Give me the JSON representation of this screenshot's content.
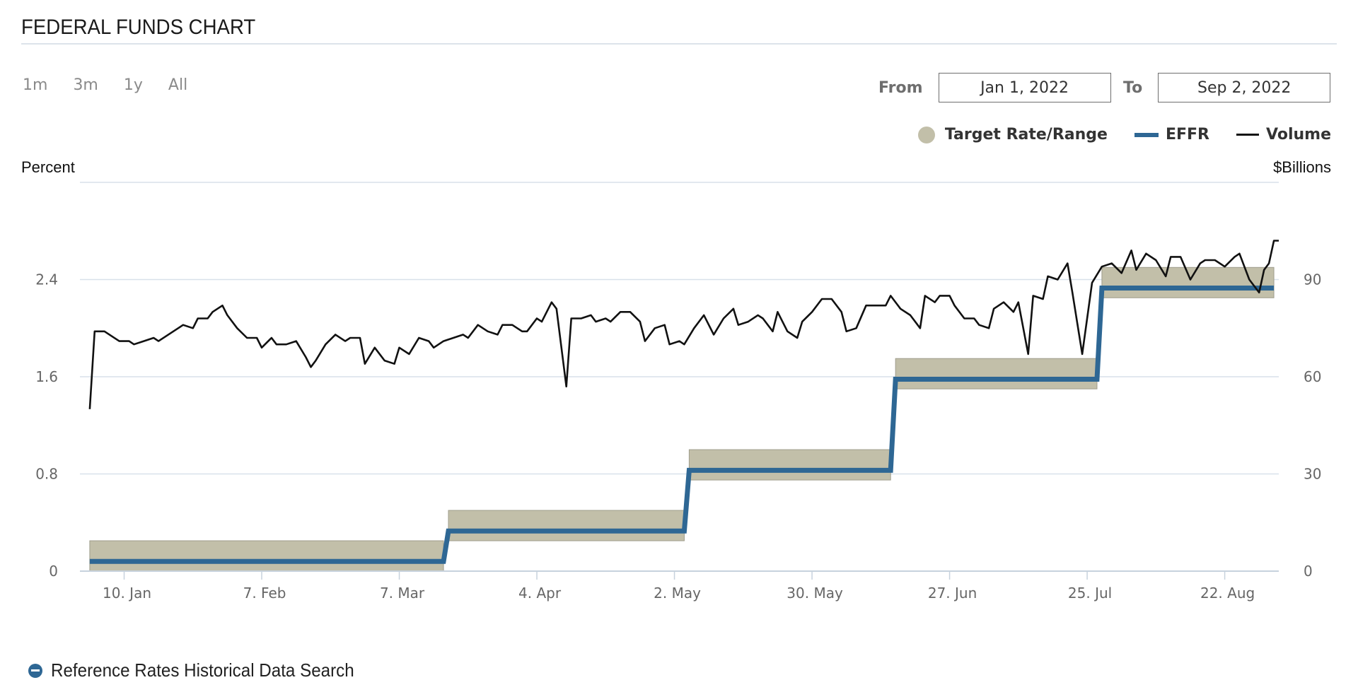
{
  "header": {
    "title": "FEDERAL FUNDS CHART"
  },
  "range_selector": {
    "buttons": [
      "1m",
      "3m",
      "1y",
      "All"
    ]
  },
  "date_range": {
    "from_label": "From",
    "from_value": "Jan 1, 2022",
    "to_label": "To",
    "to_value": "Sep 2, 2022"
  },
  "legend": {
    "target": "Target Rate/Range",
    "effr": "EFFR",
    "volume": "Volume"
  },
  "axes": {
    "left_title": "Percent",
    "right_title": "$Billions"
  },
  "footer": {
    "link_text": "Reference Rates Historical Data Search"
  },
  "colors": {
    "target_band": "#c2bfa9",
    "effr": "#2e6794",
    "volume": "#111111",
    "grid": "#d8e1ea"
  },
  "chart_data": {
    "type": "line",
    "x_range": [
      "2022-01-01",
      "2022-09-02"
    ],
    "x_ticks": [
      {
        "date": "2022-01-10",
        "label": "10. Jan"
      },
      {
        "date": "2022-02-07",
        "label": "7. Feb"
      },
      {
        "date": "2022-03-07",
        "label": "7. Mar"
      },
      {
        "date": "2022-04-04",
        "label": "4. Apr"
      },
      {
        "date": "2022-05-02",
        "label": "2. May"
      },
      {
        "date": "2022-05-30",
        "label": "30. May"
      },
      {
        "date": "2022-06-27",
        "label": "27. Jun"
      },
      {
        "date": "2022-07-25",
        "label": "25. Jul"
      },
      {
        "date": "2022-08-22",
        "label": "22. Aug"
      }
    ],
    "y_left": {
      "label": "Percent",
      "range": [
        0,
        3.2
      ],
      "ticks": [
        "0",
        "0.8",
        "1.6",
        "2.4"
      ],
      "tick_values": [
        0,
        0.8,
        1.6,
        2.4
      ]
    },
    "y_right": {
      "label": "$Billions",
      "range": [
        0,
        120
      ],
      "ticks": [
        "0",
        "30",
        "60",
        "90"
      ],
      "tick_values": [
        0,
        30,
        60,
        90
      ]
    },
    "grid": true,
    "legend_position": "top-right",
    "series": [
      {
        "name": "Target Rate/Range",
        "kind": "range",
        "steps": [
          {
            "start": "2022-01-03",
            "end": "2022-03-16",
            "lower": 0.0,
            "upper": 0.25
          },
          {
            "start": "2022-03-17",
            "end": "2022-05-04",
            "lower": 0.25,
            "upper": 0.5
          },
          {
            "start": "2022-05-05",
            "end": "2022-06-15",
            "lower": 0.75,
            "upper": 1.0
          },
          {
            "start": "2022-06-16",
            "end": "2022-07-27",
            "lower": 1.5,
            "upper": 1.75
          },
          {
            "start": "2022-07-28",
            "end": "2022-09-01",
            "lower": 2.25,
            "upper": 2.5
          }
        ]
      },
      {
        "name": "EFFR",
        "kind": "step",
        "steps": [
          {
            "start": "2022-01-03",
            "end": "2022-03-16",
            "value": 0.08
          },
          {
            "start": "2022-03-17",
            "end": "2022-05-04",
            "value": 0.33
          },
          {
            "start": "2022-05-05",
            "end": "2022-06-15",
            "value": 0.83
          },
          {
            "start": "2022-06-16",
            "end": "2022-07-27",
            "value": 1.58
          },
          {
            "start": "2022-07-28",
            "end": "2022-09-01",
            "value": 2.33
          }
        ]
      },
      {
        "name": "Volume",
        "kind": "line",
        "axis": "right",
        "points": [
          [
            "2022-01-03",
            50
          ],
          [
            "2022-01-04",
            74
          ],
          [
            "2022-01-06",
            74
          ],
          [
            "2022-01-07",
            73
          ],
          [
            "2022-01-09",
            71
          ],
          [
            "2022-01-11",
            71
          ],
          [
            "2022-01-12",
            70
          ],
          [
            "2022-01-14",
            71
          ],
          [
            "2022-01-16",
            72
          ],
          [
            "2022-01-17",
            71
          ],
          [
            "2022-01-19",
            73
          ],
          [
            "2022-01-21",
            75
          ],
          [
            "2022-01-22",
            76
          ],
          [
            "2022-01-24",
            75
          ],
          [
            "2022-01-25",
            78
          ],
          [
            "2022-01-27",
            78
          ],
          [
            "2022-01-28",
            80
          ],
          [
            "2022-01-30",
            82
          ],
          [
            "2022-01-31",
            79
          ],
          [
            "2022-02-02",
            75
          ],
          [
            "2022-02-04",
            72
          ],
          [
            "2022-02-06",
            72
          ],
          [
            "2022-02-07",
            69
          ],
          [
            "2022-02-09",
            72
          ],
          [
            "2022-02-10",
            70
          ],
          [
            "2022-02-12",
            70
          ],
          [
            "2022-02-14",
            71
          ],
          [
            "2022-02-16",
            66
          ],
          [
            "2022-02-17",
            63
          ],
          [
            "2022-02-18",
            65
          ],
          [
            "2022-02-20",
            70
          ],
          [
            "2022-02-22",
            73
          ],
          [
            "2022-02-24",
            71
          ],
          [
            "2022-02-25",
            72
          ],
          [
            "2022-02-27",
            72
          ],
          [
            "2022-02-28",
            64
          ],
          [
            "2022-03-02",
            69
          ],
          [
            "2022-03-04",
            65
          ],
          [
            "2022-03-06",
            64
          ],
          [
            "2022-03-07",
            69
          ],
          [
            "2022-03-09",
            67
          ],
          [
            "2022-03-11",
            72
          ],
          [
            "2022-03-13",
            71
          ],
          [
            "2022-03-14",
            69
          ],
          [
            "2022-03-16",
            71
          ],
          [
            "2022-03-18",
            72
          ],
          [
            "2022-03-20",
            73
          ],
          [
            "2022-03-21",
            72
          ],
          [
            "2022-03-23",
            76
          ],
          [
            "2022-03-25",
            74
          ],
          [
            "2022-03-27",
            73
          ],
          [
            "2022-03-28",
            76
          ],
          [
            "2022-03-30",
            76
          ],
          [
            "2022-04-01",
            74
          ],
          [
            "2022-04-02",
            74
          ],
          [
            "2022-04-04",
            78
          ],
          [
            "2022-04-05",
            77
          ],
          [
            "2022-04-07",
            83
          ],
          [
            "2022-04-08",
            81
          ],
          [
            "2022-04-10",
            57
          ],
          [
            "2022-04-11",
            78
          ],
          [
            "2022-04-13",
            78
          ],
          [
            "2022-04-15",
            79
          ],
          [
            "2022-04-16",
            77
          ],
          [
            "2022-04-18",
            78
          ],
          [
            "2022-04-19",
            77
          ],
          [
            "2022-04-21",
            80
          ],
          [
            "2022-04-23",
            80
          ],
          [
            "2022-04-25",
            77
          ],
          [
            "2022-04-26",
            71
          ],
          [
            "2022-04-28",
            75
          ],
          [
            "2022-04-30",
            76
          ],
          [
            "2022-05-01",
            70
          ],
          [
            "2022-05-03",
            71
          ],
          [
            "2022-05-04",
            70
          ],
          [
            "2022-05-06",
            75
          ],
          [
            "2022-05-08",
            79
          ],
          [
            "2022-05-10",
            73
          ],
          [
            "2022-05-12",
            78
          ],
          [
            "2022-05-14",
            81
          ],
          [
            "2022-05-15",
            76
          ],
          [
            "2022-05-17",
            77
          ],
          [
            "2022-05-19",
            79
          ],
          [
            "2022-05-20",
            78
          ],
          [
            "2022-05-22",
            74
          ],
          [
            "2022-05-23",
            80
          ],
          [
            "2022-05-25",
            74
          ],
          [
            "2022-05-27",
            72
          ],
          [
            "2022-05-28",
            77
          ],
          [
            "2022-05-30",
            80
          ],
          [
            "2022-06-01",
            84
          ],
          [
            "2022-06-03",
            84
          ],
          [
            "2022-06-05",
            80
          ],
          [
            "2022-06-06",
            74
          ],
          [
            "2022-06-08",
            75
          ],
          [
            "2022-06-10",
            82
          ],
          [
            "2022-06-12",
            82
          ],
          [
            "2022-06-14",
            82
          ],
          [
            "2022-06-15",
            85
          ],
          [
            "2022-06-17",
            81
          ],
          [
            "2022-06-19",
            79
          ],
          [
            "2022-06-21",
            75
          ],
          [
            "2022-06-22",
            85
          ],
          [
            "2022-06-24",
            83
          ],
          [
            "2022-06-25",
            85
          ],
          [
            "2022-06-27",
            85
          ],
          [
            "2022-06-28",
            82
          ],
          [
            "2022-06-30",
            78
          ],
          [
            "2022-07-02",
            78
          ],
          [
            "2022-07-03",
            76
          ],
          [
            "2022-07-05",
            75
          ],
          [
            "2022-07-06",
            81
          ],
          [
            "2022-07-08",
            83
          ],
          [
            "2022-07-10",
            80
          ],
          [
            "2022-07-11",
            83
          ],
          [
            "2022-07-13",
            67
          ],
          [
            "2022-07-14",
            85
          ],
          [
            "2022-07-16",
            84
          ],
          [
            "2022-07-17",
            91
          ],
          [
            "2022-07-19",
            90
          ],
          [
            "2022-07-21",
            95
          ],
          [
            "2022-07-22",
            86
          ],
          [
            "2022-07-24",
            67
          ],
          [
            "2022-07-26",
            89
          ],
          [
            "2022-07-28",
            94
          ],
          [
            "2022-07-30",
            95
          ],
          [
            "2022-08-01",
            92
          ],
          [
            "2022-08-03",
            99
          ],
          [
            "2022-08-04",
            93
          ],
          [
            "2022-08-06",
            98
          ],
          [
            "2022-08-08",
            96
          ],
          [
            "2022-08-10",
            91
          ],
          [
            "2022-08-11",
            97
          ],
          [
            "2022-08-13",
            97
          ],
          [
            "2022-08-15",
            90
          ],
          [
            "2022-08-17",
            95
          ],
          [
            "2022-08-18",
            96
          ],
          [
            "2022-08-20",
            96
          ],
          [
            "2022-08-22",
            94
          ],
          [
            "2022-08-24",
            97
          ],
          [
            "2022-08-25",
            98
          ],
          [
            "2022-08-27",
            90
          ],
          [
            "2022-08-29",
            86
          ],
          [
            "2022-08-30",
            93
          ],
          [
            "2022-08-31",
            95
          ],
          [
            "2022-09-01",
            102
          ],
          [
            "2022-09-02",
            102
          ]
        ]
      }
    ]
  }
}
